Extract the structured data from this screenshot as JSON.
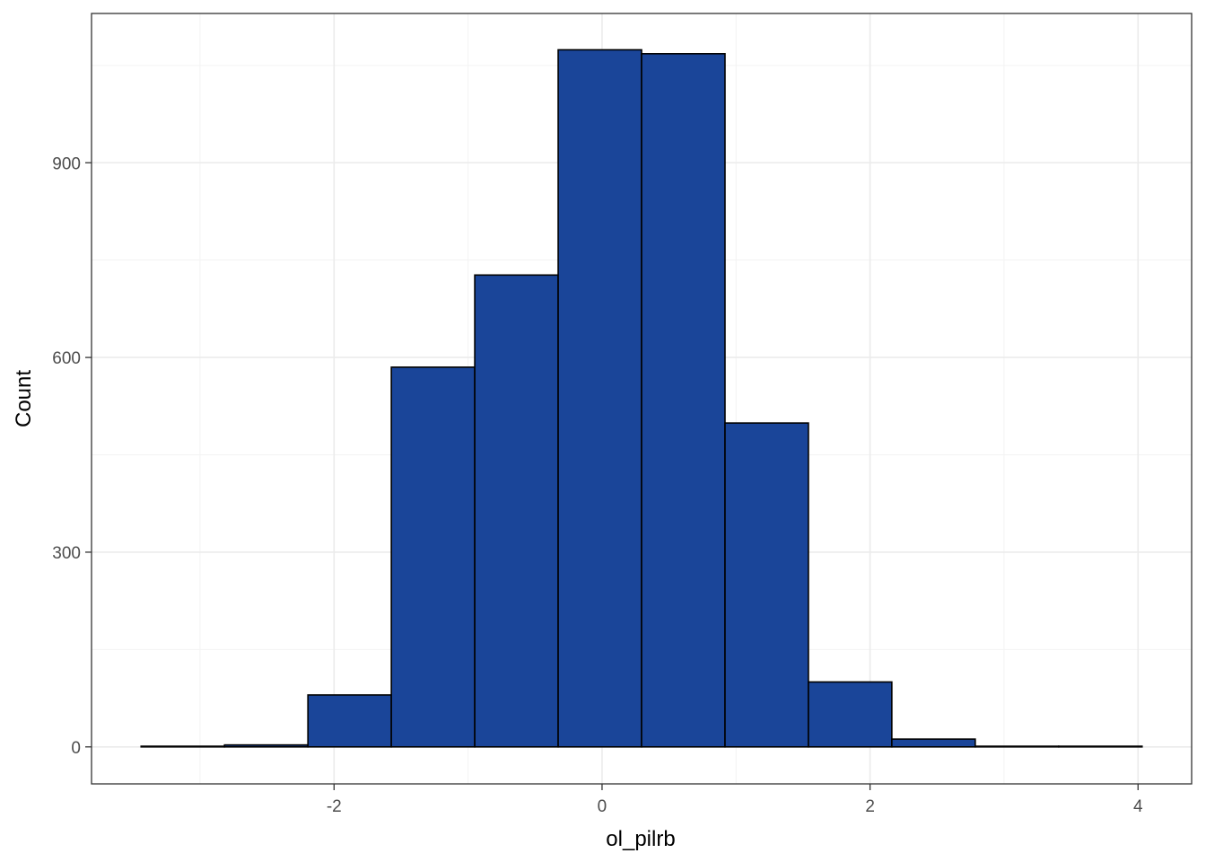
{
  "chart_data": {
    "type": "bar",
    "title": "",
    "xlabel": "ol_pilrb",
    "ylabel": "Count",
    "bin_width": 0.6225,
    "bins": [
      {
        "x_start": -3.44,
        "x_end": -2.8175,
        "count": 1
      },
      {
        "x_start": -2.8175,
        "x_end": -2.195,
        "count": 3
      },
      {
        "x_start": -2.195,
        "x_end": -1.5725,
        "count": 80
      },
      {
        "x_start": -1.5725,
        "x_end": -0.95,
        "count": 585
      },
      {
        "x_start": -0.95,
        "x_end": -0.3275,
        "count": 727
      },
      {
        "x_start": -0.3275,
        "x_end": 0.295,
        "count": 1074
      },
      {
        "x_start": 0.295,
        "x_end": 0.9175,
        "count": 1068
      },
      {
        "x_start": 0.9175,
        "x_end": 1.54,
        "count": 499
      },
      {
        "x_start": 1.54,
        "x_end": 2.1625,
        "count": 100
      },
      {
        "x_start": 2.1625,
        "x_end": 2.785,
        "count": 12
      },
      {
        "x_start": 2.785,
        "x_end": 3.4075,
        "count": 1
      },
      {
        "x_start": 3.4075,
        "x_end": 4.03,
        "count": 1
      }
    ],
    "xlim": [
      -3.81,
      4.4
    ],
    "ylim": [
      -57,
      1130
    ],
    "x_ticks": [
      -2,
      0,
      2,
      4
    ],
    "x_tick_labels": [
      "-2",
      "0",
      "2",
      "4"
    ],
    "y_ticks": [
      0,
      300,
      600,
      900
    ],
    "y_tick_labels": [
      "0",
      "300",
      "600",
      "900"
    ],
    "grid": true,
    "legend": "none",
    "colors": {
      "bar_fill": "#1a4599",
      "bar_outline": "#000000",
      "grid_major": "#ebebeb",
      "grid_minor": "#f3f3f3",
      "panel_border": "#333333",
      "tick_text": "#4d4d4d"
    }
  }
}
